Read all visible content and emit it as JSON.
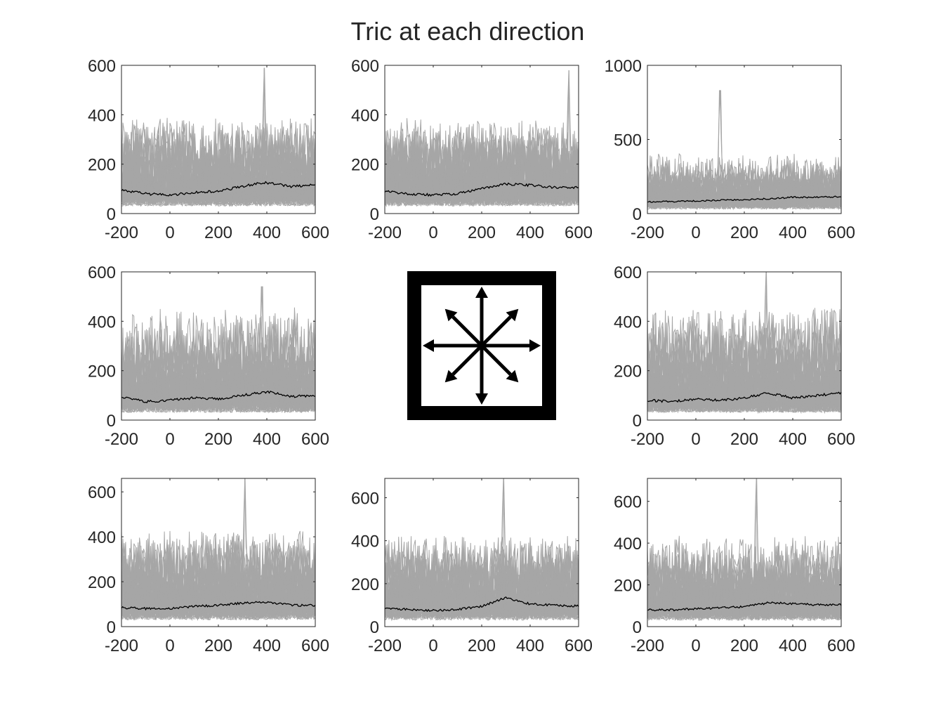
{
  "figure": {
    "title": "Tric at each direction",
    "colors": {
      "trials": "#a6a6a6",
      "mean": "#000000",
      "axes": "#262626",
      "background": "#ffffff"
    },
    "center_icon": "eight-direction-arrows-icon"
  },
  "chart_data": [
    {
      "type": "line",
      "panel": "top-left",
      "xlim": [
        -200,
        600
      ],
      "ylim": [
        0,
        600
      ],
      "xticks": [
        -200,
        0,
        200,
        400,
        600
      ],
      "yticks": [
        0,
        200,
        400,
        600
      ],
      "mean_line": {
        "x": [
          -200,
          -100,
          0,
          100,
          200,
          300,
          350,
          400,
          500,
          600
        ],
        "y": [
          95,
          80,
          75,
          85,
          90,
          110,
          120,
          125,
          110,
          115
        ]
      },
      "trial_range": {
        "typical_max": 400,
        "peak": 590,
        "peak_x": 390,
        "floor": 30
      }
    },
    {
      "type": "line",
      "panel": "top-center",
      "xlim": [
        -200,
        600
      ],
      "ylim": [
        0,
        600
      ],
      "xticks": [
        -200,
        0,
        200,
        400,
        600
      ],
      "yticks": [
        0,
        200,
        400,
        600
      ],
      "mean_line": {
        "x": [
          -200,
          -100,
          0,
          100,
          200,
          300,
          400,
          500,
          600
        ],
        "y": [
          90,
          80,
          75,
          80,
          100,
          120,
          115,
          105,
          105
        ]
      },
      "trial_range": {
        "typical_max": 400,
        "peak": 580,
        "peak_x": 560,
        "floor": 30
      }
    },
    {
      "type": "line",
      "panel": "top-right",
      "xlim": [
        -200,
        600
      ],
      "ylim": [
        0,
        1000
      ],
      "xticks": [
        -200,
        0,
        200,
        400,
        600
      ],
      "yticks": [
        0,
        500,
        1000
      ],
      "mean_line": {
        "x": [
          -200,
          -100,
          0,
          100,
          200,
          300,
          400,
          500,
          600
        ],
        "y": [
          80,
          80,
          85,
          90,
          95,
          100,
          110,
          110,
          115
        ]
      },
      "trial_range": {
        "typical_max": 420,
        "peak": 830,
        "peak_x": 100,
        "floor": 30
      }
    },
    {
      "type": "line",
      "panel": "middle-left",
      "xlim": [
        -200,
        600
      ],
      "ylim": [
        0,
        600
      ],
      "xticks": [
        -200,
        0,
        200,
        400,
        600
      ],
      "yticks": [
        0,
        200,
        400,
        600
      ],
      "mean_line": {
        "x": [
          -200,
          -100,
          0,
          100,
          200,
          300,
          400,
          500,
          600
        ],
        "y": [
          95,
          75,
          80,
          90,
          85,
          100,
          115,
          95,
          100
        ]
      },
      "trial_range": {
        "typical_max": 460,
        "peak": 540,
        "peak_x": 380,
        "floor": 30
      }
    },
    {
      "type": "line",
      "panel": "middle-right",
      "xlim": [
        -200,
        600
      ],
      "ylim": [
        0,
        600
      ],
      "xticks": [
        -200,
        0,
        200,
        400,
        600
      ],
      "yticks": [
        0,
        200,
        400,
        600
      ],
      "mean_line": {
        "x": [
          -200,
          -100,
          0,
          100,
          200,
          300,
          400,
          500,
          600
        ],
        "y": [
          80,
          75,
          85,
          80,
          90,
          110,
          90,
          100,
          110
        ]
      },
      "trial_range": {
        "typical_max": 460,
        "peak": 600,
        "peak_x": 290,
        "floor": 30
      }
    },
    {
      "type": "line",
      "panel": "bottom-left",
      "xlim": [
        -200,
        600
      ],
      "ylim": [
        0,
        660
      ],
      "xticks": [
        -200,
        0,
        200,
        400,
        600
      ],
      "yticks": [
        0,
        200,
        400,
        600
      ],
      "mean_line": {
        "x": [
          -200,
          -100,
          0,
          100,
          200,
          300,
          400,
          500,
          600
        ],
        "y": [
          85,
          80,
          80,
          90,
          95,
          105,
          110,
          95,
          95
        ]
      },
      "trial_range": {
        "typical_max": 440,
        "peak": 660,
        "peak_x": 310,
        "floor": 30
      }
    },
    {
      "type": "line",
      "panel": "bottom-center",
      "xlim": [
        -200,
        600
      ],
      "ylim": [
        0,
        690
      ],
      "xticks": [
        -200,
        0,
        200,
        400,
        600
      ],
      "yticks": [
        0,
        200,
        400,
        600
      ],
      "mean_line": {
        "x": [
          -200,
          -100,
          0,
          100,
          200,
          250,
          300,
          400,
          500,
          600
        ],
        "y": [
          85,
          80,
          75,
          80,
          95,
          115,
          135,
          105,
          100,
          95
        ]
      },
      "trial_range": {
        "typical_max": 440,
        "peak": 690,
        "peak_x": 290,
        "floor": 30
      }
    },
    {
      "type": "line",
      "panel": "bottom-right",
      "xlim": [
        -200,
        600
      ],
      "ylim": [
        0,
        710
      ],
      "xticks": [
        -200,
        0,
        200,
        400,
        600
      ],
      "yticks": [
        0,
        200,
        400,
        600
      ],
      "mean_line": {
        "x": [
          -200,
          -100,
          0,
          100,
          200,
          300,
          400,
          500,
          600
        ],
        "y": [
          80,
          80,
          85,
          90,
          95,
          115,
          110,
          105,
          105
        ]
      },
      "trial_range": {
        "typical_max": 440,
        "peak": 710,
        "peak_x": 250,
        "floor": 30
      }
    }
  ]
}
